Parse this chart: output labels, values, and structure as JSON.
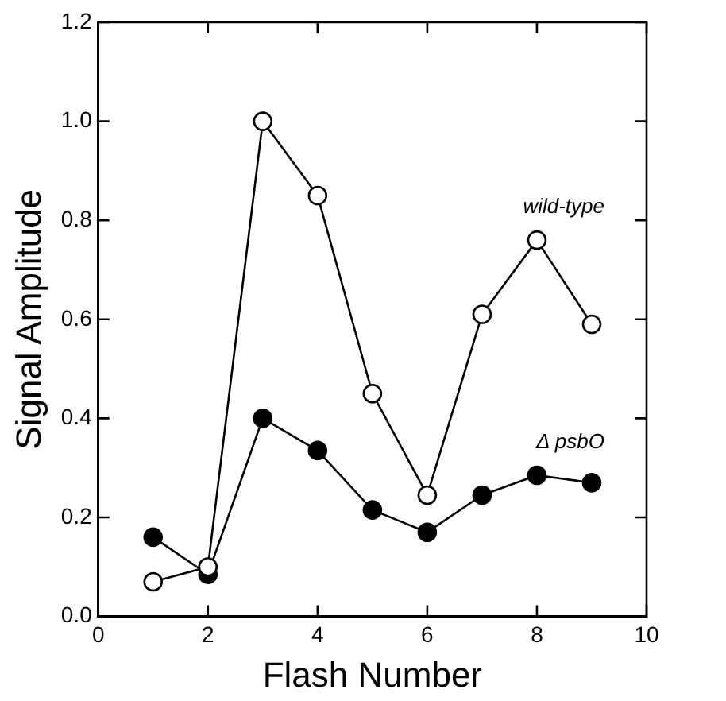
{
  "chart_data": {
    "type": "line",
    "xlabel": "Flash Number",
    "ylabel": "Signal Amplitude",
    "x": [
      1,
      2,
      3,
      4,
      5,
      6,
      7,
      8,
      9
    ],
    "series": [
      {
        "name": "wild-type",
        "color": "#000000",
        "values": [
          0.07,
          0.1,
          1.0,
          0.85,
          0.45,
          0.245,
          0.61,
          0.76,
          0.59
        ]
      },
      {
        "name": "Δ psbO",
        "color": "#000000",
        "values": [
          0.16,
          0.085,
          0.4,
          0.335,
          0.215,
          0.17,
          0.245,
          0.285,
          0.27
        ]
      }
    ],
    "xlim": [
      0,
      10
    ],
    "xticks": [
      0,
      2,
      4,
      6,
      8,
      10
    ],
    "ylim": [
      0,
      1.2
    ],
    "yticks": [
      {
        "value": 0,
        "label": "0.0"
      },
      0.2,
      0.4,
      0.6,
      0.8,
      {
        "value": 1,
        "label": "1.0"
      },
      1.2
    ],
    "marker": "circle",
    "line_style": "solid",
    "grid": false,
    "legend": "right"
  }
}
